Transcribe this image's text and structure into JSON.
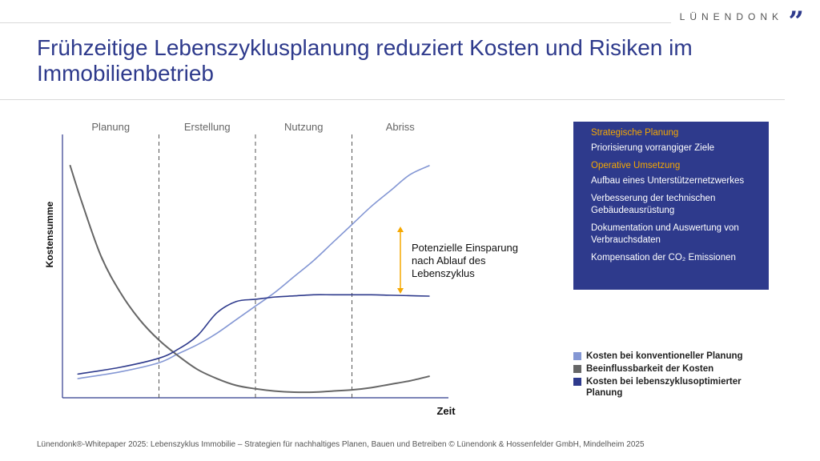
{
  "brand": {
    "name": "LÜNENDONK",
    "mark": "”"
  },
  "title": "Frühzeitige Lebenszyklusplanung reduziert Kosten und Risiken im Immobilienbetrieb",
  "info_box": {
    "sections": [
      {
        "heading": "Strategische Planung",
        "items": [
          "Priorisierung vorrangiger Ziele"
        ]
      },
      {
        "heading": "Operative Umsetzung",
        "items": [
          "Aufbau eines Unterstützernetzwerkes",
          "Verbesserung der technischen Gebäudeausrüstung",
          "Dokumentation und Auswertung von Verbrauchsdaten",
          "Kompensation der CO₂ Emissionen"
        ]
      }
    ]
  },
  "chart_data": {
    "type": "line",
    "xlabel": "Zeit",
    "ylabel": "Kostensumme",
    "xlim": [
      0,
      100
    ],
    "ylim": [
      0,
      100
    ],
    "phases": [
      "Planung",
      "Erstellung",
      "Nutzung",
      "Abriss"
    ],
    "phase_boundaries": [
      25,
      50,
      75
    ],
    "annotation": "Potenzielle Einsparung nach Ablauf des Lebenszyklus",
    "grid": false,
    "legend_position": "bottom-right",
    "colors": {
      "axis": "#2e3a8c",
      "divider": "#555555",
      "arrow": "#f6a800"
    },
    "series": [
      {
        "name": "Kosten bei konventioneller Planung",
        "color": "#8497d4",
        "x": [
          4,
          15,
          25,
          30,
          35,
          40,
          45,
          50,
          55,
          60,
          65,
          70,
          75,
          80,
          85,
          90,
          95
        ],
        "y": [
          6,
          9,
          13,
          17,
          21,
          26,
          32,
          38,
          44,
          51,
          58,
          66,
          74,
          82,
          89,
          96,
          100
        ]
      },
      {
        "name": "Beeinflussbarkeit der Kosten",
        "color": "#666666",
        "x": [
          2,
          5,
          10,
          15,
          20,
          25,
          30,
          35,
          40,
          45,
          50,
          55,
          60,
          65,
          70,
          75,
          80,
          85,
          90,
          95
        ],
        "y": [
          100,
          84,
          60,
          44,
          32,
          23,
          16,
          10,
          6,
          3,
          1.5,
          0.5,
          0,
          0,
          0.5,
          1,
          2,
          3.5,
          5,
          7
        ]
      },
      {
        "name": "Kosten bei lebenszyklusoptimierter Planung",
        "color": "#2e3a8c",
        "x": [
          4,
          15,
          25,
          30,
          35,
          40,
          45,
          50,
          55,
          60,
          65,
          70,
          75,
          80,
          85,
          90,
          95
        ],
        "y": [
          8,
          11,
          15,
          19,
          25,
          35,
          40,
          41,
          42,
          42.5,
          43,
          43,
          43,
          43,
          42.8,
          42.6,
          42.4
        ]
      }
    ]
  },
  "footer": "Lünendonk®-Whitepaper 2025: Lebenszyklus Immobilie – Strategien für nachhaltiges Planen, Bauen und Betreiben © Lünendonk & Hossenfelder GmbH, Mindelheim 2025"
}
